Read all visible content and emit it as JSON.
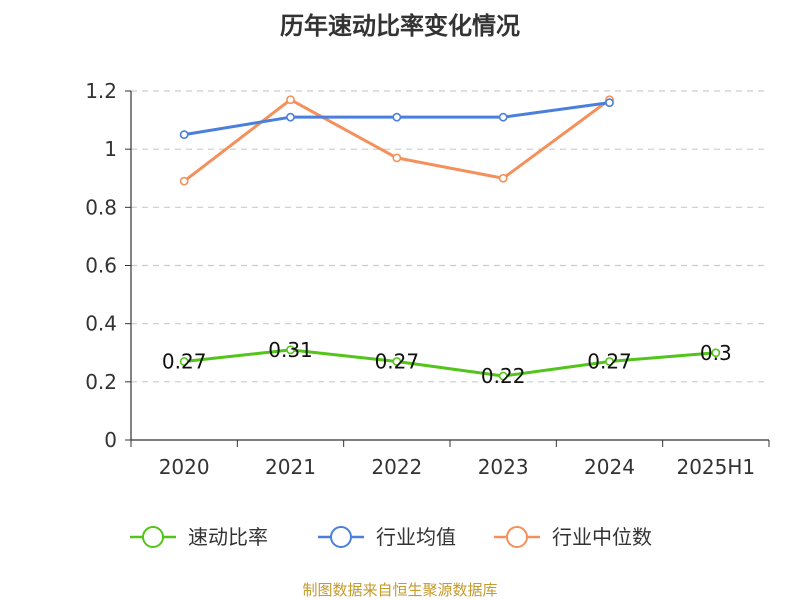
{
  "chart_data": {
    "type": "line",
    "title": "历年速动比率变化情况",
    "categories": [
      "2020",
      "2021",
      "2022",
      "2023",
      "2024",
      "2025H1"
    ],
    "ylim": [
      0,
      1.2
    ],
    "yticks": [
      0,
      0.2,
      0.4,
      0.6,
      0.8,
      1,
      1.2
    ],
    "ytick_labels": [
      "0",
      "0.2",
      "0.4",
      "0.6",
      "0.8",
      "1",
      "1.2"
    ],
    "grid": true,
    "legend_position": "bottom",
    "series": [
      {
        "name": "速动比率",
        "color": "#52c41a",
        "values": [
          0.27,
          0.31,
          0.27,
          0.22,
          0.27,
          0.3
        ],
        "labels": [
          "0.27",
          "0.31",
          "0.27",
          "0.22",
          "0.27",
          "0.3"
        ]
      },
      {
        "name": "行业均值",
        "color": "#4a7fdb",
        "values": [
          1.05,
          1.11,
          1.11,
          1.11,
          1.16,
          null
        ]
      },
      {
        "name": "行业中位数",
        "color": "#f4905b",
        "values": [
          0.89,
          1.17,
          0.97,
          0.9,
          1.17,
          null
        ]
      }
    ]
  },
  "source": {
    "text": "制图数据来自恒生聚源数据库",
    "color": "#c49a2c"
  }
}
